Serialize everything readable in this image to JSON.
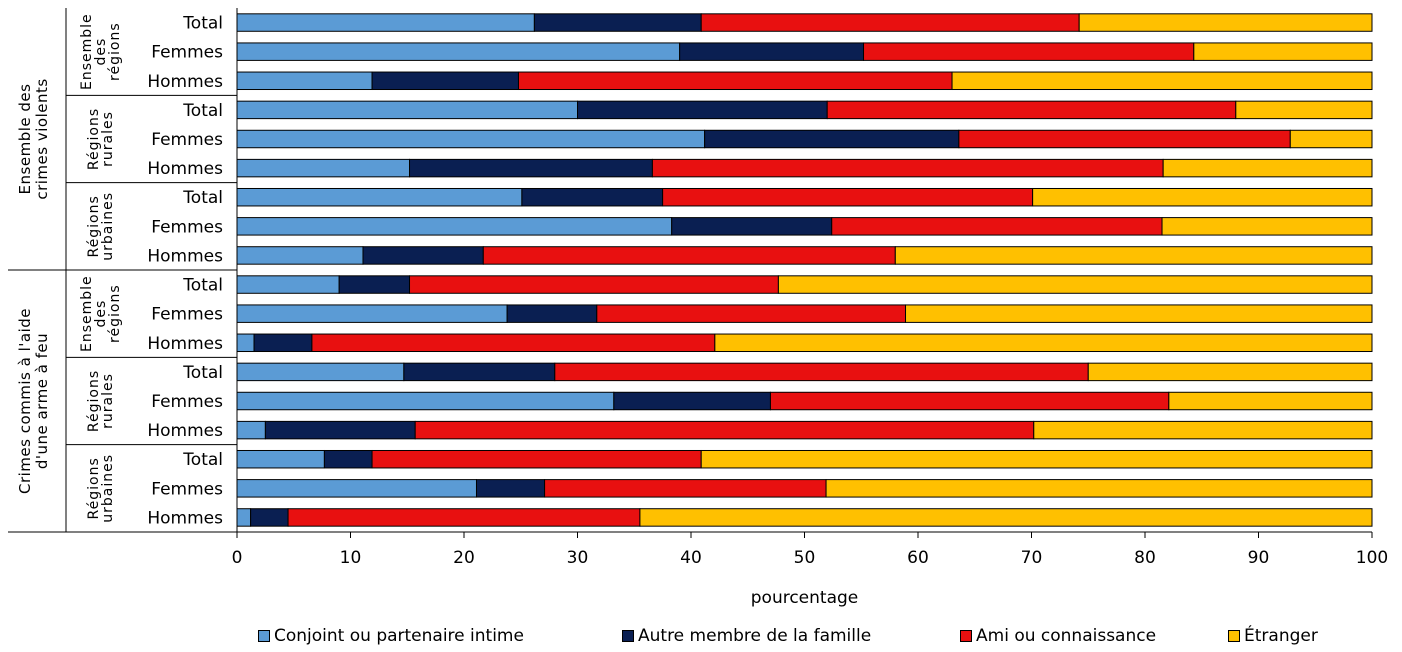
{
  "chart_data": {
    "type": "bar",
    "orientation": "horizontal",
    "stacked": true,
    "xlabel": "pourcentage",
    "xlim": [
      0,
      100
    ],
    "xticks": [
      0,
      10,
      20,
      30,
      40,
      50,
      60,
      70,
      80,
      90,
      100
    ],
    "grid": false,
    "legend_position": "bottom",
    "groups": [
      {
        "label": "Ensemble des crimes violents",
        "subgroups": [
          {
            "label": "Ensemble des régions",
            "rows": [
              {
                "label": "Total",
                "values": [
                  26.2,
                  14.7,
                  33.3,
                  25.8
                ]
              },
              {
                "label": "Femmes",
                "values": [
                  39.0,
                  16.2,
                  29.1,
                  15.7
                ]
              },
              {
                "label": "Hommes",
                "values": [
                  11.9,
                  12.9,
                  38.2,
                  37.0
                ]
              }
            ]
          },
          {
            "label": "Régions rurales",
            "rows": [
              {
                "label": "Total",
                "values": [
                  30.0,
                  22.0,
                  36.0,
                  12.0
                ]
              },
              {
                "label": "Femmes",
                "values": [
                  41.2,
                  22.4,
                  29.2,
                  7.2
                ]
              },
              {
                "label": "Hommes",
                "values": [
                  15.2,
                  21.4,
                  45.0,
                  18.4
                ]
              }
            ]
          },
          {
            "label": "Régions urbaines",
            "rows": [
              {
                "label": "Total",
                "values": [
                  25.1,
                  12.4,
                  32.6,
                  29.9
                ]
              },
              {
                "label": "Femmes",
                "values": [
                  38.3,
                  14.1,
                  29.1,
                  18.5
                ]
              },
              {
                "label": "Hommes",
                "values": [
                  11.1,
                  10.6,
                  36.3,
                  42.0
                ]
              }
            ]
          }
        ]
      },
      {
        "label": "Crimes commis à l'aide d'une arme à feu",
        "subgroups": [
          {
            "label": "Ensemble des régions",
            "rows": [
              {
                "label": "Total",
                "values": [
                  9.0,
                  6.2,
                  32.5,
                  52.3
                ]
              },
              {
                "label": "Femmes",
                "values": [
                  23.8,
                  7.9,
                  27.2,
                  41.1
                ]
              },
              {
                "label": "Hommes",
                "values": [
                  1.5,
                  5.1,
                  35.5,
                  57.9
                ]
              }
            ]
          },
          {
            "label": "Régions rurales",
            "rows": [
              {
                "label": "Total",
                "values": [
                  14.7,
                  13.3,
                  47.0,
                  25.0
                ]
              },
              {
                "label": "Femmes",
                "values": [
                  33.2,
                  13.8,
                  35.1,
                  17.9
                ]
              },
              {
                "label": "Hommes",
                "values": [
                  2.5,
                  13.2,
                  54.5,
                  29.8
                ]
              }
            ]
          },
          {
            "label": "Régions urbaines",
            "rows": [
              {
                "label": "Total",
                "values": [
                  7.7,
                  4.2,
                  29.0,
                  59.1
                ]
              },
              {
                "label": "Femmes",
                "values": [
                  21.1,
                  6.0,
                  24.8,
                  48.1
                ]
              },
              {
                "label": "Hommes",
                "values": [
                  1.2,
                  3.3,
                  31.0,
                  64.5
                ]
              }
            ]
          }
        ]
      }
    ],
    "series": [
      {
        "name": "Conjoint ou partenaire intime",
        "color": "#5b9bd5"
      },
      {
        "name": "Autre membre de la famille",
        "color": "#0a1f52"
      },
      {
        "name": "Ami ou connaissance",
        "color": "#e81010"
      },
      {
        "name": "Étranger",
        "color": "#ffc000"
      }
    ]
  }
}
